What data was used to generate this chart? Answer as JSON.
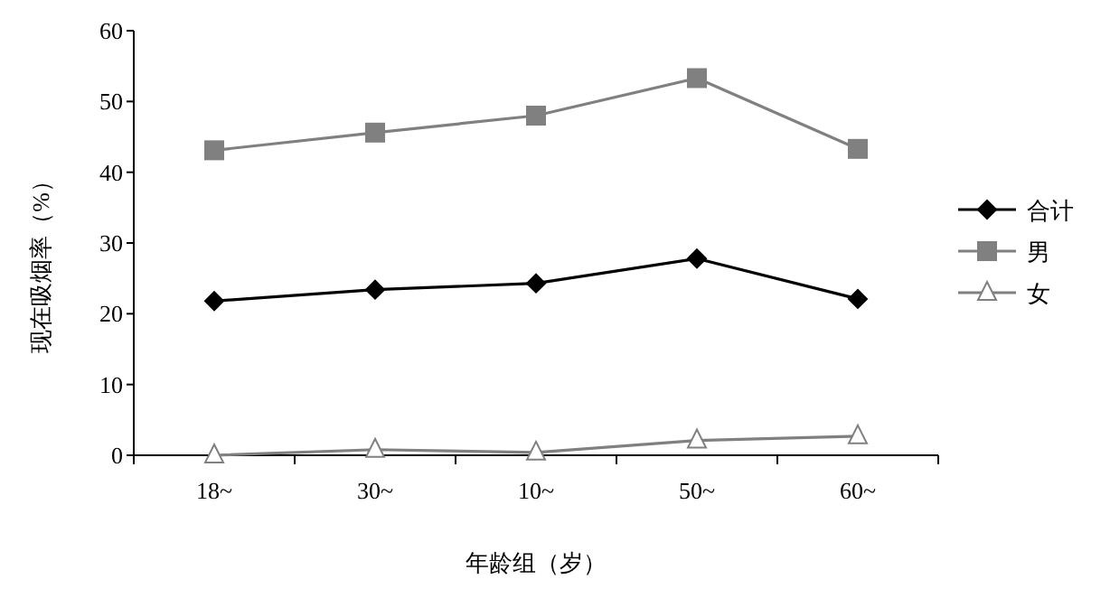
{
  "chart_data": {
    "type": "line",
    "xlabel": "年龄组（岁）",
    "ylabel": "现在吸烟率（%）",
    "categories": [
      "18~",
      "30~",
      "10~",
      "50~",
      "60~"
    ],
    "series": [
      {
        "name": "合计",
        "color": "#000000",
        "marker": "diamond",
        "values": [
          21.8,
          23.4,
          24.3,
          27.8,
          22.1
        ]
      },
      {
        "name": "男",
        "color": "#808080",
        "marker": "square",
        "values": [
          43.1,
          45.6,
          48.0,
          53.3,
          43.3
        ]
      },
      {
        "name": "女",
        "color": "#808080",
        "marker": "triangle",
        "values": [
          0,
          0.8,
          0.4,
          2.1,
          2.7
        ]
      }
    ],
    "ylim": [
      0,
      60
    ],
    "yticks": [
      0,
      10,
      20,
      30,
      40,
      50,
      60
    ],
    "grid": false,
    "legend": "right",
    "line_style": "solid"
  }
}
